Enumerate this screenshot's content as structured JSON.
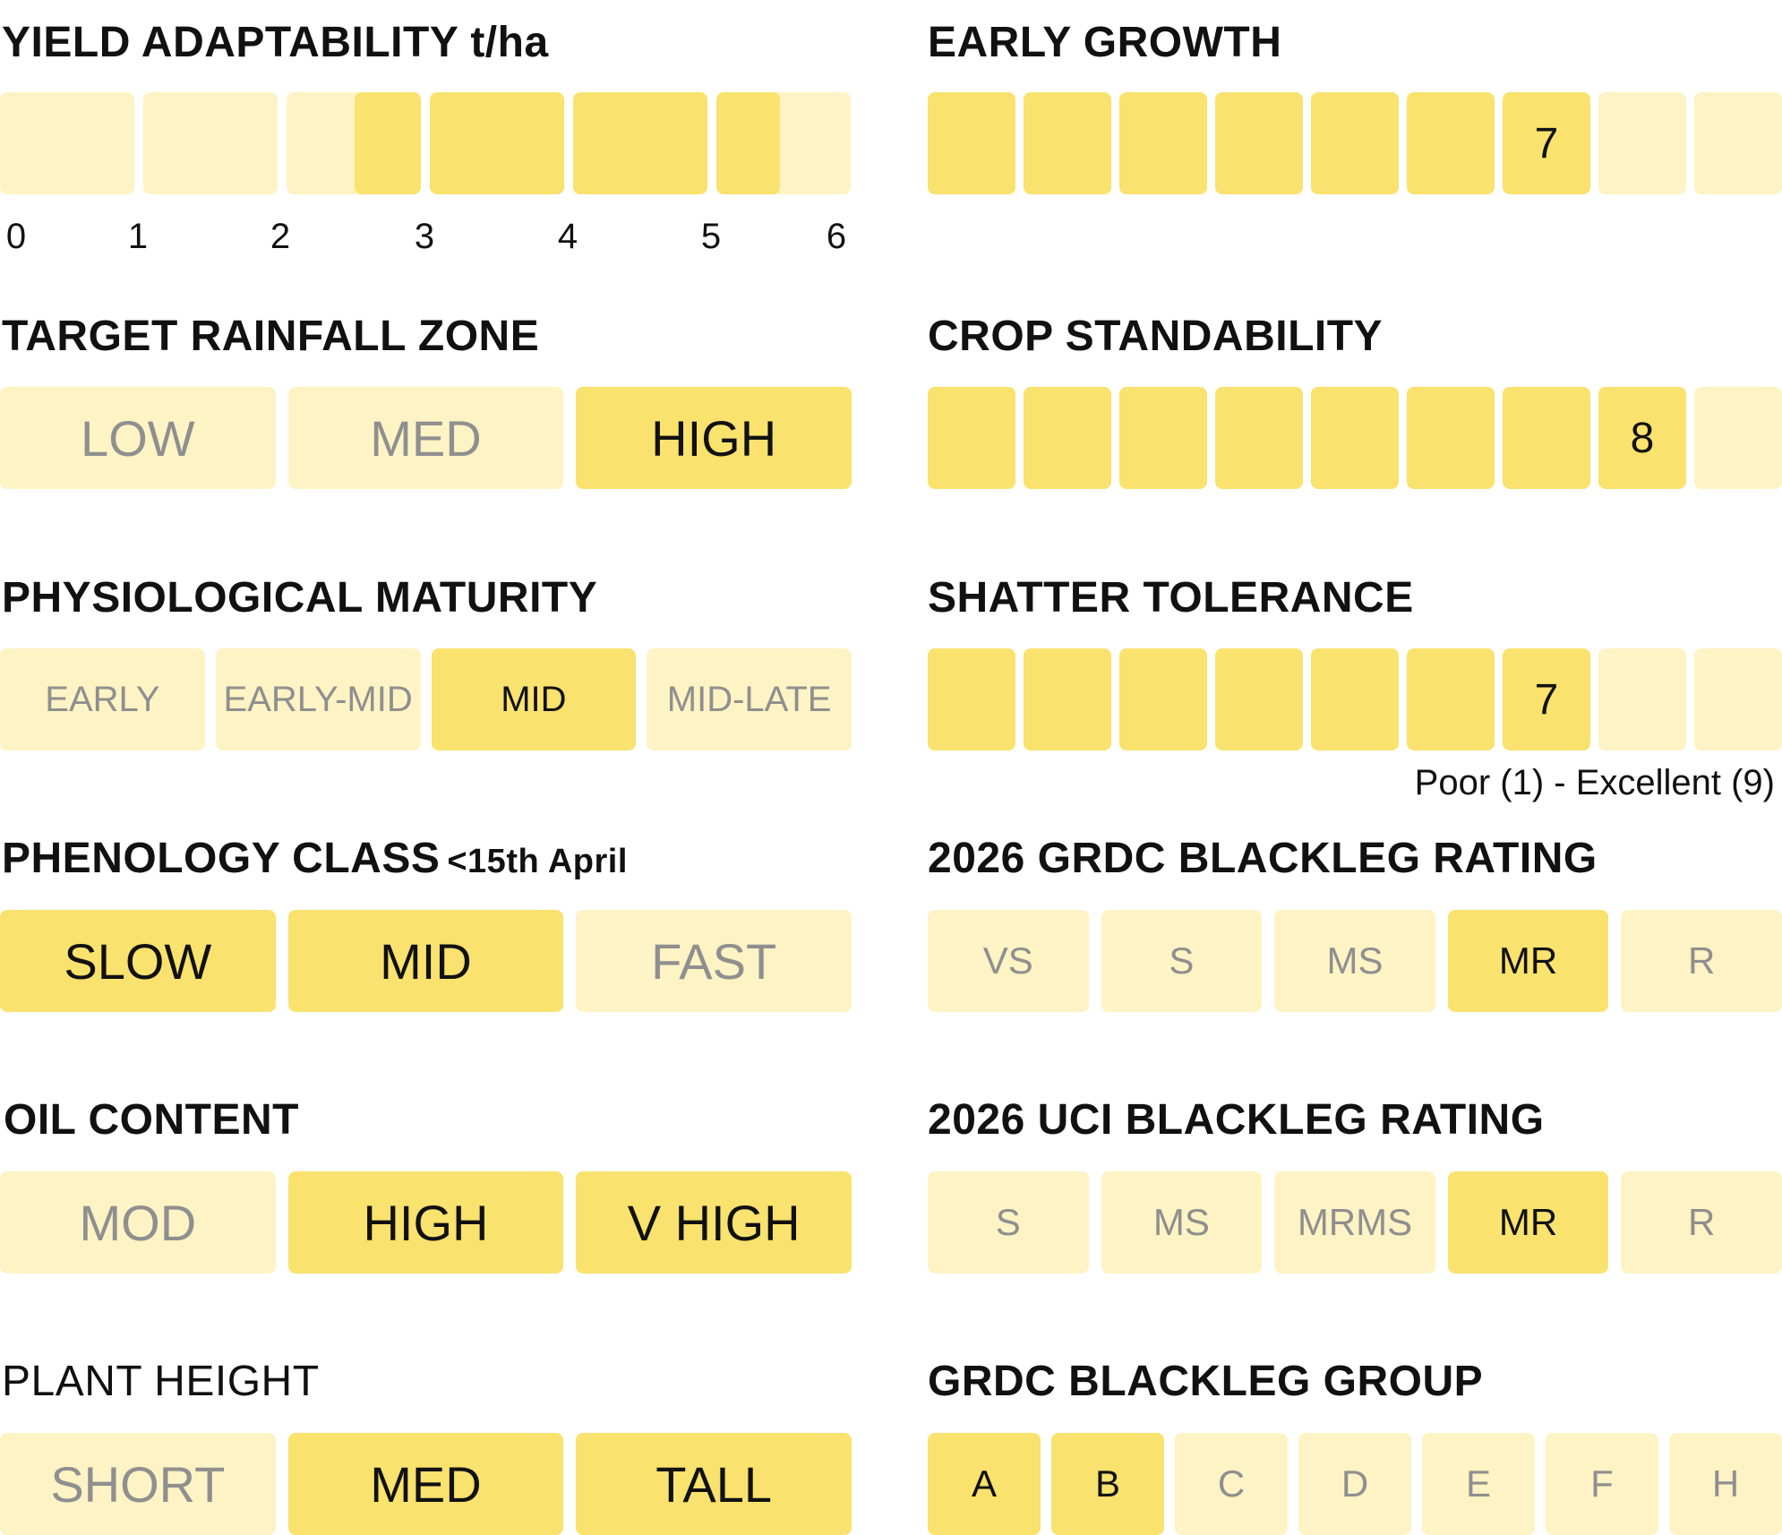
{
  "colors": {
    "active": "#f9e26d",
    "inactive": "#fdf3c4",
    "active_text": "#111111",
    "inactive_text": "#8f8f8f"
  },
  "yield": {
    "title": "YIELD ADAPTABILITY",
    "unit": "t/ha",
    "axis": [
      "0",
      "1",
      "2",
      "3",
      "4",
      "5",
      "6"
    ],
    "range_start": 2.5,
    "range_end": 5.5
  },
  "rainfall": {
    "title": "TARGET RAINFALL ZONE",
    "options": [
      {
        "label": "LOW",
        "active": false
      },
      {
        "label": "MED",
        "active": false
      },
      {
        "label": "HIGH",
        "active": true
      }
    ]
  },
  "maturity": {
    "title": "PHYSIOLOGICAL MATURITY",
    "options": [
      {
        "label": "EARLY",
        "active": false
      },
      {
        "label": "EARLY-MID",
        "active": false
      },
      {
        "label": "MID",
        "active": true
      },
      {
        "label": "MID-LATE",
        "active": false
      }
    ]
  },
  "phenology": {
    "title": "PHENOLOGY CLASS",
    "suffix": "<15th April",
    "options": [
      {
        "label": "SLOW",
        "active": true
      },
      {
        "label": "MID",
        "active": true
      },
      {
        "label": "FAST",
        "active": false
      }
    ]
  },
  "oil": {
    "title": "OIL CONTENT",
    "options": [
      {
        "label": "MOD",
        "active": false
      },
      {
        "label": "HIGH",
        "active": true
      },
      {
        "label": "V HIGH",
        "active": true
      }
    ]
  },
  "height": {
    "title": "PLANT HEIGHT",
    "options": [
      {
        "label": "SHORT",
        "active": false
      },
      {
        "label": "MED",
        "active": true
      },
      {
        "label": "TALL",
        "active": true
      }
    ]
  },
  "early_growth": {
    "title": "EARLY GROWTH",
    "value": 7,
    "max": 9,
    "value_label": "7"
  },
  "standability": {
    "title": "CROP STANDABILITY",
    "value": 8,
    "max": 9,
    "value_label": "8"
  },
  "shatter": {
    "title": "SHATTER TOLERANCE",
    "value": 7,
    "max": 9,
    "value_label": "7",
    "scale_note": "Poor (1) - Excellent (9)"
  },
  "grdc_rating": {
    "title": "2026 GRDC BLACKLEG RATING",
    "options": [
      {
        "label": "VS",
        "active": false
      },
      {
        "label": "S",
        "active": false
      },
      {
        "label": "MS",
        "active": false
      },
      {
        "label": "MR",
        "active": true
      },
      {
        "label": "R",
        "active": false
      }
    ]
  },
  "uci_rating": {
    "title": "2026 UCI BLACKLEG RATING",
    "options": [
      {
        "label": "S",
        "active": false
      },
      {
        "label": "MS",
        "active": false
      },
      {
        "label": "MRMS",
        "active": false
      },
      {
        "label": "MR",
        "active": true
      },
      {
        "label": "R",
        "active": false
      }
    ]
  },
  "grdc_group": {
    "title": "GRDC BLACKLEG GROUP",
    "options": [
      {
        "label": "A",
        "active": true
      },
      {
        "label": "B",
        "active": true
      },
      {
        "label": "C",
        "active": false
      },
      {
        "label": "D",
        "active": false
      },
      {
        "label": "E",
        "active": false
      },
      {
        "label": "F",
        "active": false
      },
      {
        "label": "H",
        "active": false
      }
    ]
  }
}
